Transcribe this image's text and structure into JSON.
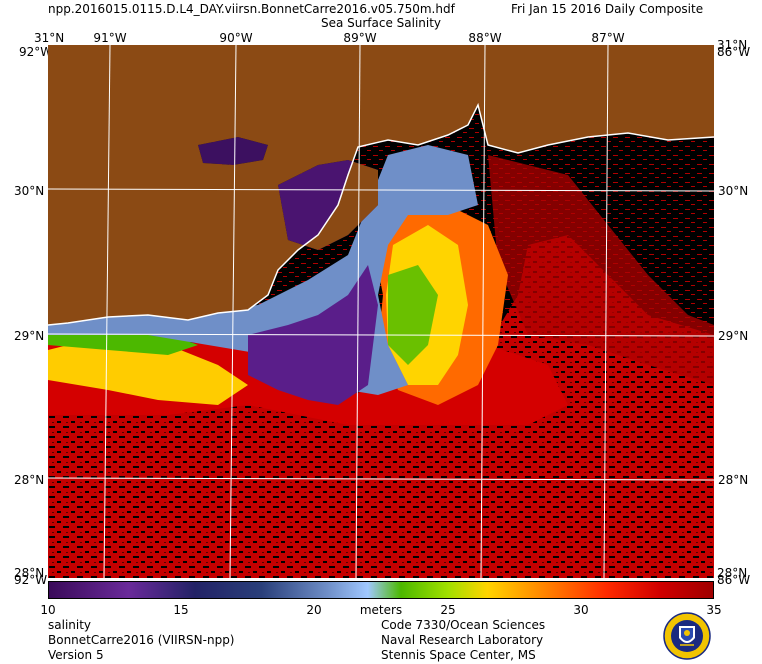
{
  "header": {
    "filename": "npp.2016015.0115.D.L4_DAY.viirsn.BonnetCarre2016.v05.750m.hdf",
    "composite": "Fri Jan 15 2016 Daily Composite",
    "product": "Sea Surface Salinity"
  },
  "map": {
    "lon_labels": [
      "91°W",
      "90°W",
      "89°W",
      "88°W",
      "87°W"
    ],
    "lat_labels": [
      "30°N",
      "29°N",
      "28°N"
    ],
    "corner_labels": {
      "top_left_lat": "31°N",
      "top_left_lon": "92°W",
      "top_right_lat": "31°N",
      "top_right_lon": "86°W",
      "bottom_left_lat": "28°N",
      "bottom_left_lon": "92°W",
      "bottom_right_lat": "28°N",
      "bottom_right_lon": "86°W"
    },
    "colors": {
      "land": "#8b4a14",
      "no_data": "#000000",
      "coastline": "#ffffff",
      "grid": "#ffffff"
    }
  },
  "colorbar": {
    "ticks": [
      "10",
      "15",
      "20",
      "25",
      "30",
      "35"
    ],
    "units": "meters",
    "range": [
      10,
      35
    ]
  },
  "footer": {
    "left": [
      "salinity",
      "BonnetCarre2016 (VIIRSN-npp)",
      "Version 5"
    ],
    "right": [
      "Code 7330/Ocean Sciences",
      "Naval Research Laboratory",
      "Stennis Space Center, MS"
    ]
  }
}
